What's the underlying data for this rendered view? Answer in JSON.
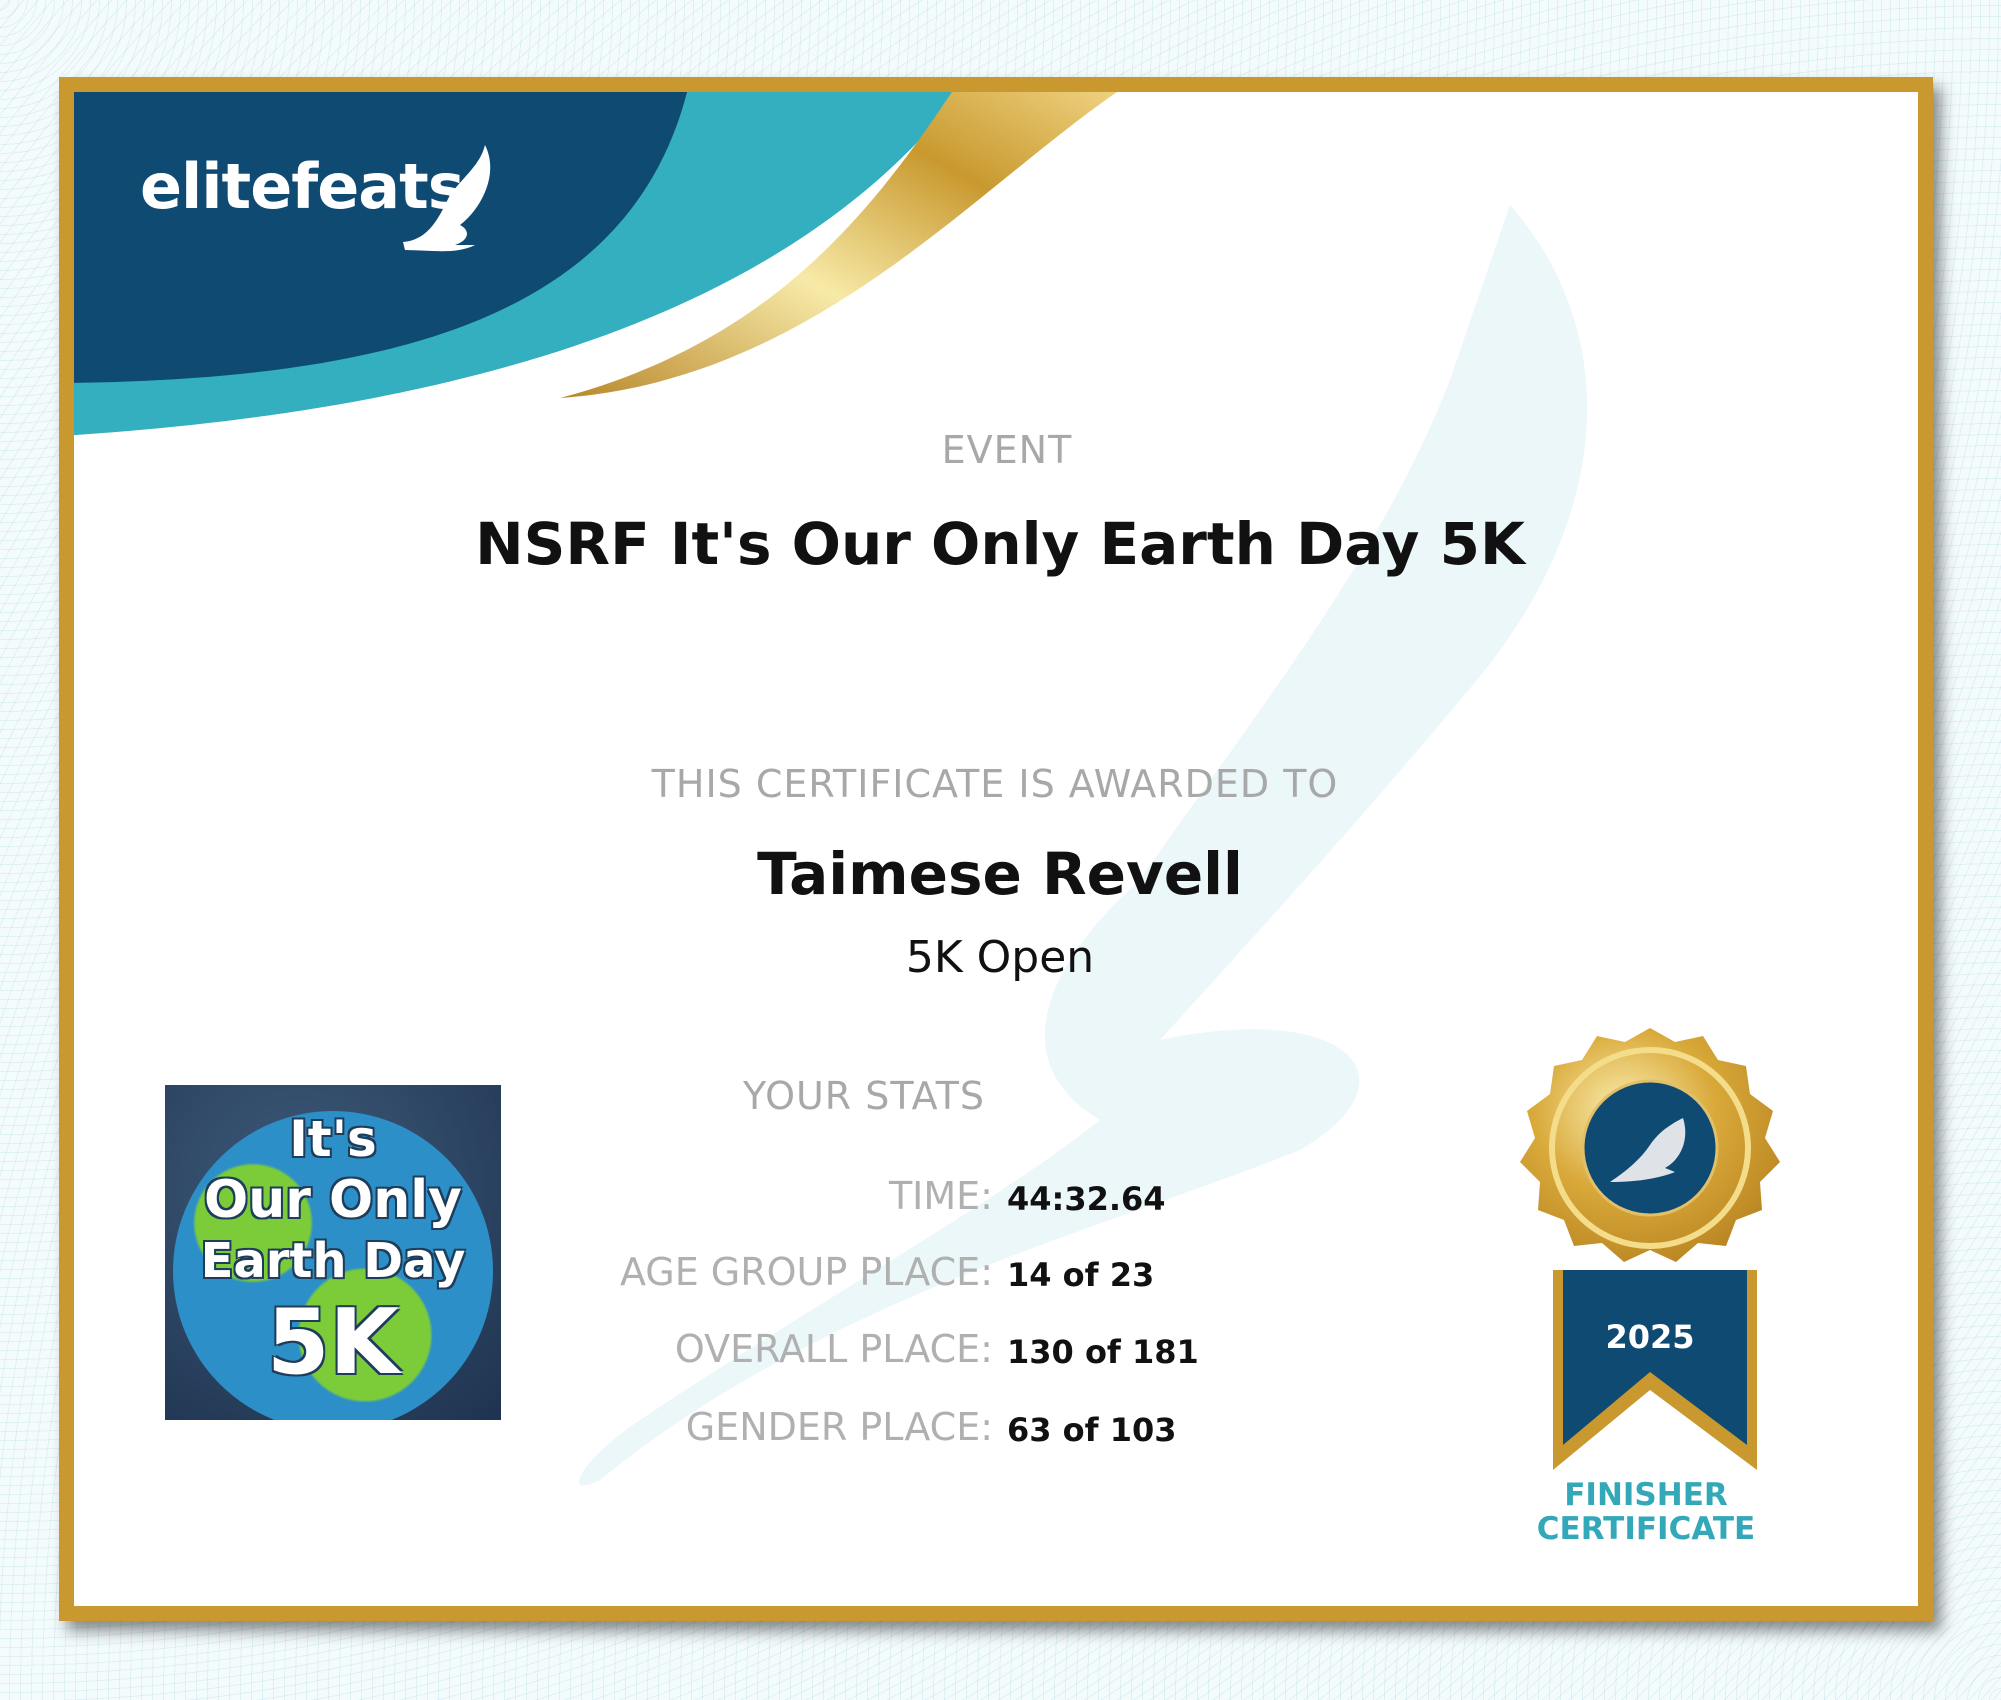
{
  "brand": {
    "logo_text": "elitefeats",
    "colors": {
      "navy": "#0f4a73",
      "teal": "#33afc0",
      "gold": "#c9992f"
    }
  },
  "event": {
    "label": "EVENT",
    "name": "NSRF It's Our Only Earth Day 5K"
  },
  "award": {
    "label": "THIS CERTIFICATE IS AWARDED TO",
    "recipient": "Taimese Revell",
    "division": "5K Open"
  },
  "stats": {
    "label": "YOUR STATS",
    "rows": [
      {
        "label": "TIME:",
        "value": "44:32.64"
      },
      {
        "label": "AGE GROUP PLACE:",
        "value": "14 of 23"
      },
      {
        "label": "OVERALL PLACE:",
        "value": "130 of 181"
      },
      {
        "label": "GENDER PLACE:",
        "value": "63 of 103"
      }
    ]
  },
  "event_image": {
    "line1": "It's",
    "line2": "Our Only",
    "line3": "Earth Day",
    "line4": "5K"
  },
  "medal": {
    "year": "2025",
    "icon": "winged-foot-icon",
    "caption_line1": "FINISHER",
    "caption_line2": "CERTIFICATE"
  }
}
